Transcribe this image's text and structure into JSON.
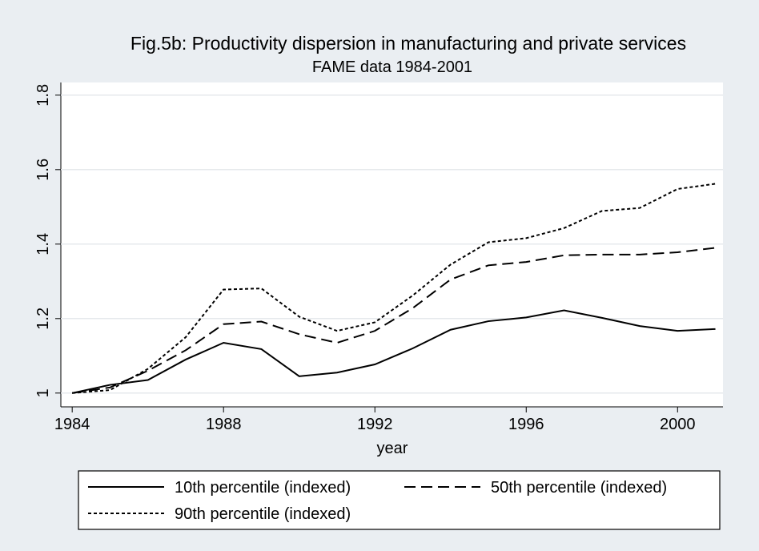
{
  "chart_data": {
    "type": "line",
    "title": "Fig.5b: Productivity dispersion in manufacturing and private services",
    "subtitle": "FAME data 1984-2001",
    "x_label": "year",
    "x": [
      1984,
      1985,
      1986,
      1987,
      1988,
      1989,
      1990,
      1991,
      1992,
      1993,
      1994,
      1995,
      1996,
      1997,
      1998,
      1999,
      2000,
      2001
    ],
    "series": [
      {
        "name": "10th percentile (indexed)",
        "color": "#000000",
        "dash": "solid",
        "values": [
          1.0,
          1.022,
          1.035,
          1.09,
          1.135,
          1.118,
          1.045,
          1.055,
          1.077,
          1.12,
          1.17,
          1.193,
          1.203,
          1.222,
          1.202,
          1.18,
          1.167,
          1.172
        ]
      },
      {
        "name": "50th percentile (indexed)",
        "color": "#000000",
        "dash": "longdash",
        "values": [
          1.0,
          1.015,
          1.06,
          1.115,
          1.185,
          1.192,
          1.158,
          1.135,
          1.167,
          1.228,
          1.305,
          1.343,
          1.352,
          1.37,
          1.372,
          1.372,
          1.378,
          1.39
        ]
      },
      {
        "name": "90th percentile (indexed)",
        "color": "#000000",
        "dash": "shortdash",
        "values": [
          1.0,
          1.008,
          1.065,
          1.15,
          1.278,
          1.281,
          1.205,
          1.167,
          1.19,
          1.262,
          1.345,
          1.405,
          1.416,
          1.443,
          1.489,
          1.497,
          1.548,
          1.562
        ]
      }
    ],
    "xlim": [
      1983.7,
      2001.2
    ],
    "xticks": [
      1984,
      1988,
      1992,
      1996,
      2000
    ],
    "ylim": [
      0.963,
      1.834
    ],
    "yticks": [
      1,
      1.2,
      1.4,
      1.6,
      1.8
    ],
    "grid": true
  }
}
